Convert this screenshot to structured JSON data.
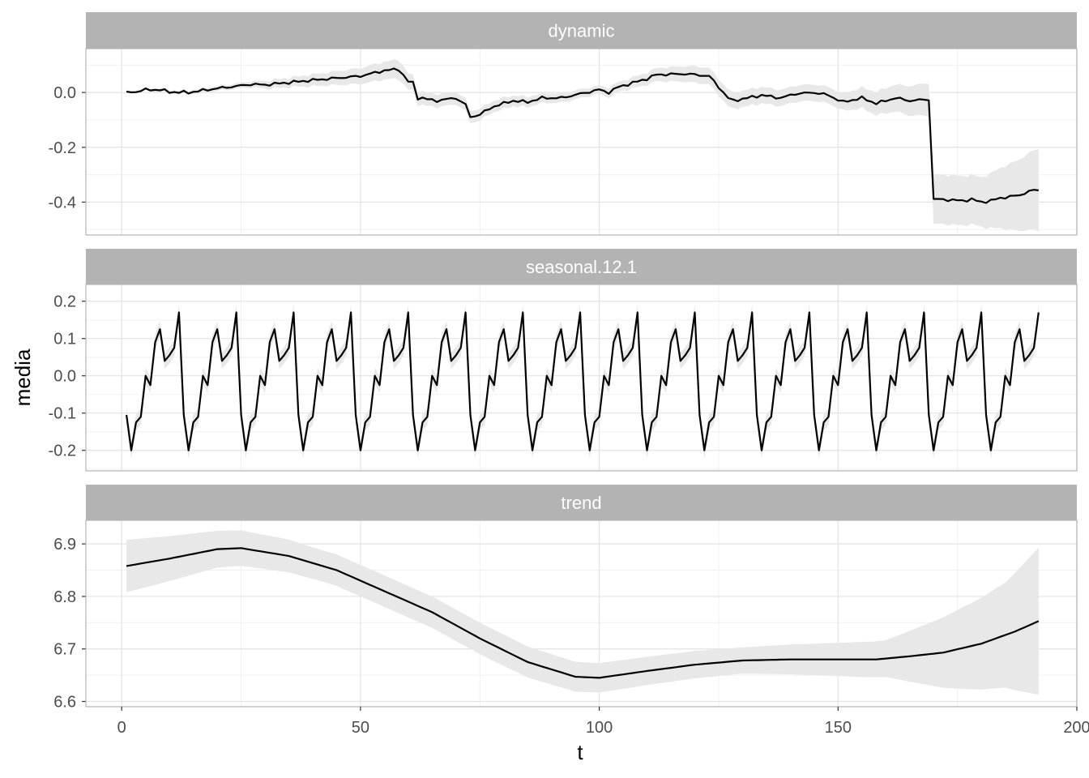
{
  "chart_data": {
    "type": "line",
    "layout": "faceted, 3 panels stacked vertically, shared x axis, free y axes",
    "xlabel": "t",
    "ylabel": "media",
    "xlim": [
      -7.5,
      200
    ],
    "x_ticks": [
      0,
      50,
      100,
      150,
      200
    ],
    "x_tick_labels": [
      "0",
      "50",
      "100",
      "150",
      "200"
    ],
    "grid": true,
    "theme": "light",
    "colors": {
      "strip": "#b3b3b3",
      "line": "#000000",
      "ribbon": "#e8e8e8",
      "grid": "#e3e3e3",
      "border": "#b3b3b3"
    },
    "panels": [
      {
        "strip": "dynamic",
        "ylim": [
          -0.52,
          0.16
        ],
        "y_ticks": [
          0.0,
          -0.2,
          -0.4
        ],
        "y_tick_labels": [
          "0.0",
          "-0.2",
          "-0.4"
        ],
        "series": {
          "mean_knots": [
            [
              1,
              0.0
            ],
            [
              3,
              0.003
            ],
            [
              5,
              0.01
            ],
            [
              8,
              0.01
            ],
            [
              10,
              0.002
            ],
            [
              14,
              0.0
            ],
            [
              20,
              0.015
            ],
            [
              25,
              0.025
            ],
            [
              27,
              0.03
            ],
            [
              30,
              0.028
            ],
            [
              40,
              0.045
            ],
            [
              50,
              0.06
            ],
            [
              55,
              0.08
            ],
            [
              58,
              0.085
            ],
            [
              60,
              0.04
            ],
            [
              61,
              0.035
            ],
            [
              62,
              -0.02
            ],
            [
              63,
              -0.02
            ],
            [
              64,
              -0.025
            ],
            [
              66,
              -0.03
            ],
            [
              70,
              -0.02
            ],
            [
              72,
              -0.045
            ],
            [
              73,
              -0.09
            ],
            [
              75,
              -0.08
            ],
            [
              78,
              -0.05
            ],
            [
              82,
              -0.03
            ],
            [
              85,
              -0.035
            ],
            [
              88,
              -0.02
            ],
            [
              92,
              -0.02
            ],
            [
              96,
              -0.005
            ],
            [
              100,
              0.01
            ],
            [
              102,
              0.0
            ],
            [
              104,
              0.02
            ],
            [
              106,
              0.03
            ],
            [
              110,
              0.05
            ],
            [
              112,
              0.065
            ],
            [
              118,
              0.068
            ],
            [
              120,
              0.065
            ],
            [
              123,
              0.06
            ],
            [
              125,
              0.02
            ],
            [
              127,
              -0.02
            ],
            [
              128,
              -0.03
            ],
            [
              131,
              -0.02
            ],
            [
              134,
              -0.01
            ],
            [
              138,
              -0.02
            ],
            [
              141,
              -0.005
            ],
            [
              145,
              0.0
            ],
            [
              148,
              -0.01
            ],
            [
              151,
              -0.035
            ],
            [
              155,
              -0.02
            ],
            [
              158,
              -0.04
            ],
            [
              162,
              -0.02
            ],
            [
              165,
              -0.03
            ],
            [
              169,
              -0.025
            ],
            [
              170,
              -0.39
            ],
            [
              172,
              -0.39
            ],
            [
              176,
              -0.395
            ],
            [
              178,
              -0.39
            ],
            [
              180,
              -0.4
            ],
            [
              182,
              -0.395
            ],
            [
              184,
              -0.385
            ],
            [
              188,
              -0.375
            ],
            [
              190,
              -0.36
            ],
            [
              192,
              -0.355
            ]
          ],
          "noise_amplitude": 0.006,
          "band_halfwidth": [
            [
              1,
              0.004
            ],
            [
              25,
              0.01
            ],
            [
              58,
              0.035
            ],
            [
              62,
              0.025
            ],
            [
              100,
              0.015
            ],
            [
              120,
              0.03
            ],
            [
              150,
              0.03
            ],
            [
              169,
              0.06
            ],
            [
              170,
              0.09
            ],
            [
              180,
              0.09
            ],
            [
              192,
              0.15
            ]
          ]
        }
      },
      {
        "strip": "seasonal.12.1",
        "ylim": [
          -0.255,
          0.245
        ],
        "y_ticks": [
          0.2,
          0.1,
          0.0,
          -0.1,
          -0.2
        ],
        "y_tick_labels": [
          "0.2",
          "0.1",
          "0.0",
          "-0.1",
          "-0.2"
        ],
        "series": {
          "period": 12,
          "cycle_values": [
            -0.105,
            -0.2,
            -0.125,
            -0.11,
            0.0,
            -0.025,
            0.09,
            0.125,
            0.04,
            0.055,
            0.075,
            0.17
          ],
          "band_halfwidth": 0.022
        }
      },
      {
        "strip": "trend",
        "ylim": [
          6.59,
          6.945
        ],
        "y_ticks": [
          6.9,
          6.8,
          6.7,
          6.6
        ],
        "y_tick_labels": [
          "6.9",
          "6.8",
          "6.7",
          "6.6"
        ],
        "series": {
          "mean_knots": [
            [
              1,
              6.858
            ],
            [
              10,
              6.872
            ],
            [
              20,
              6.89
            ],
            [
              25,
              6.892
            ],
            [
              35,
              6.877
            ],
            [
              45,
              6.85
            ],
            [
              55,
              6.81
            ],
            [
              65,
              6.77
            ],
            [
              75,
              6.72
            ],
            [
              85,
              6.675
            ],
            [
              95,
              6.647
            ],
            [
              100,
              6.645
            ],
            [
              110,
              6.658
            ],
            [
              120,
              6.67
            ],
            [
              130,
              6.678
            ],
            [
              140,
              6.68
            ],
            [
              150,
              6.68
            ],
            [
              158,
              6.68
            ],
            [
              165,
              6.686
            ],
            [
              172,
              6.693
            ],
            [
              180,
              6.71
            ],
            [
              187,
              6.733
            ],
            [
              192,
              6.753
            ]
          ],
          "band_halfwidth": [
            [
              1,
              0.05
            ],
            [
              20,
              0.035
            ],
            [
              40,
              0.03
            ],
            [
              80,
              0.03
            ],
            [
              100,
              0.028
            ],
            [
              130,
              0.025
            ],
            [
              160,
              0.035
            ],
            [
              175,
              0.075
            ],
            [
              185,
              0.1
            ],
            [
              192,
              0.14
            ]
          ]
        }
      }
    ]
  }
}
